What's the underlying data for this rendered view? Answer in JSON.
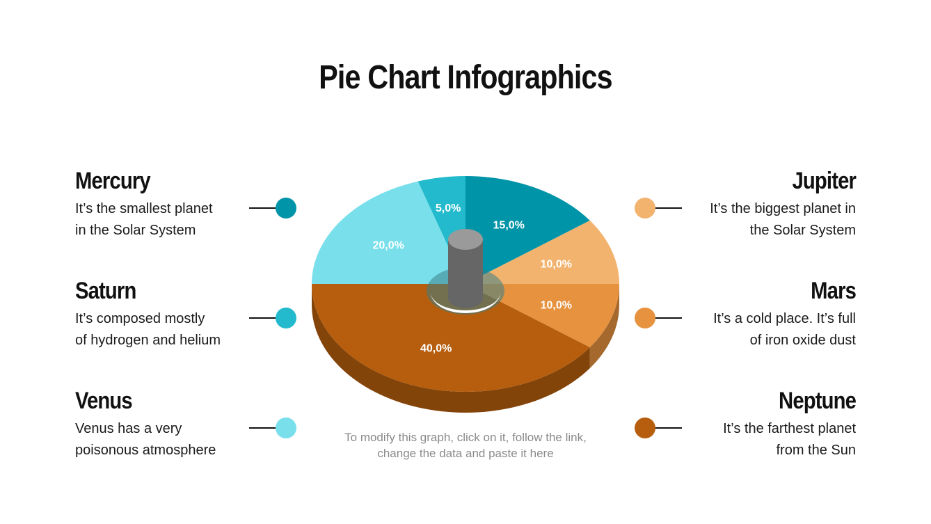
{
  "title": "Pie Chart Infographics",
  "footnote": "To modify this graph, click on it, follow the link, change the data and paste it here",
  "legend": {
    "mercury": {
      "name": "Mercury",
      "desc_line1": "It’s the smallest planet",
      "desc_line2": "in the Solar System",
      "color": "#0094A8"
    },
    "saturn": {
      "name": "Saturn",
      "desc_line1": "It’s composed mostly",
      "desc_line2": "of hydrogen and helium",
      "color": "#22BACC"
    },
    "venus": {
      "name": "Venus",
      "desc_line1": "Venus has a very",
      "desc_line2": "poisonous atmosphere",
      "color": "#78DFEB"
    },
    "jupiter": {
      "name": "Jupiter",
      "desc_line1": "It’s the biggest planet in",
      "desc_line2": "the Solar System",
      "color": "#F2B36E"
    },
    "mars": {
      "name": "Mars",
      "desc_line1": "It’s a cold place. It’s full",
      "desc_line2": "of iron oxide dust",
      "color": "#E6923E"
    },
    "neptune": {
      "name": "Neptune",
      "desc_line1": "It’s the farthest planet",
      "desc_line2": "from the Sun",
      "color": "#B65E0E"
    }
  },
  "chart_data": {
    "type": "pie",
    "slices": [
      {
        "label": "15,0%",
        "value": 15,
        "color": "#0094A8"
      },
      {
        "label": "10,0%",
        "value": 10,
        "color": "#F2B36E"
      },
      {
        "label": "10,0%",
        "value": 10,
        "color": "#E6923E"
      },
      {
        "label": "40,0%",
        "value": 40,
        "color": "#B65E0E"
      },
      {
        "label": "20,0%",
        "value": 20,
        "color": "#78DFEB"
      },
      {
        "label": "5,0%",
        "value": 5,
        "color": "#22BACC"
      }
    ],
    "style": "3d-donut"
  }
}
